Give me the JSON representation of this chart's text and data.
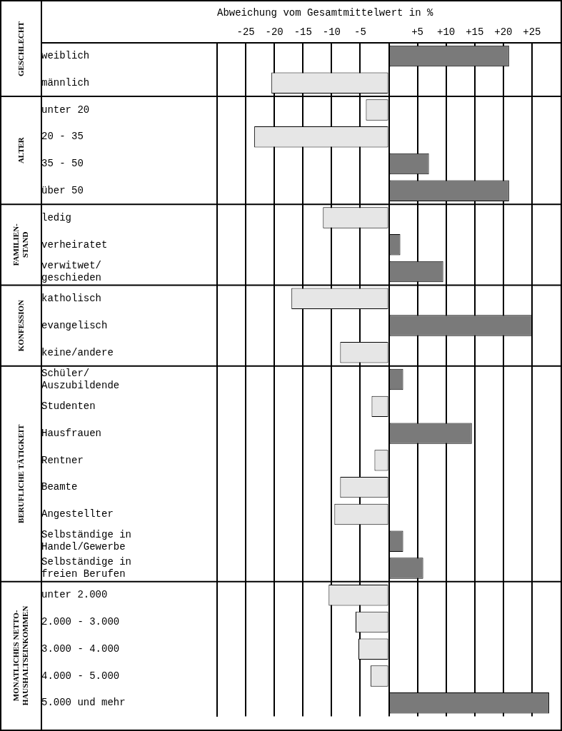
{
  "chart_data": {
    "type": "bar",
    "orientation": "horizontal",
    "x2label": "Abweichung vom Gesamtmittelwert in %",
    "categories": [
      "weiblich",
      "männlich",
      "unter 20",
      "20 - 35",
      "35 - 50",
      "über 50",
      "ledig",
      "verheiratet",
      "verwitwet/\ngeschieden",
      "katholisch",
      "evangelisch",
      "keine/andere",
      "Schüler/\nAuszubildende",
      "Studenten",
      "Hausfrauen",
      "Rentner",
      "Beamte",
      "Angestellter",
      "Selbständige in\nHandel/Gewerbe",
      "Selbständige in\nfreien Berufen",
      "unter 2.000",
      "2.000 - 3.000",
      "3.000 - 4.000",
      "4.000 - 5.000",
      "5.000 und mehr"
    ],
    "series": [
      {
        "axis": "x2",
        "values": [
          21,
          -20.5,
          -4,
          -23.5,
          7,
          21,
          -11.5,
          2,
          9.5,
          -17,
          25,
          -8.5,
          2.5,
          -3,
          14.5,
          -2.5,
          -8.5,
          -9.5,
          2.5,
          6,
          -10.5,
          -5.8,
          -5.3,
          -3.2,
          28
        ],
        "colors": [
          "#7a7a7a",
          "#e6e6e6",
          "#e6e6e6",
          "#e6e6e6",
          "#7a7a7a",
          "#7a7a7a",
          "#e6e6e6",
          "#7a7a7a",
          "#7a7a7a",
          "#e6e6e6",
          "#7a7a7a",
          "#e6e6e6",
          "#7a7a7a",
          "#e6e6e6",
          "#7a7a7a",
          "#e6e6e6",
          "#e6e6e6",
          "#e6e6e6",
          "#7a7a7a",
          "#7a7a7a",
          "#e6e6e6",
          "#e6e6e6",
          "#e6e6e6",
          "#e6e6e6",
          "#7a7a7a"
        ]
      }
    ],
    "x2lim": [
      -30,
      30
    ],
    "x2ticks": [
      {
        "value": -25,
        "label": "-25"
      },
      {
        "value": -20,
        "label": "-20"
      },
      {
        "value": -15,
        "label": "-15"
      },
      {
        "value": -10,
        "label": "-10"
      },
      {
        "value": -5,
        "label": "-5"
      },
      {
        "value": 0,
        "label": null
      },
      {
        "value": 5,
        "label": "+5"
      },
      {
        "value": 10,
        "label": "+10"
      },
      {
        "value": 15,
        "label": "+15"
      },
      {
        "value": 20,
        "label": "+20"
      },
      {
        "value": 25,
        "label": "+25"
      }
    ],
    "grid": "x",
    "annotations": [
      "GESCHLECHT",
      "ALTER",
      "FAMILIEN-\nSTAND",
      "KONFESSION",
      "BERUFLICHE TÄTIGKEIT",
      "MONATLICHES NETTO-\nHAUSHALTSEINKOMMEN"
    ]
  }
}
